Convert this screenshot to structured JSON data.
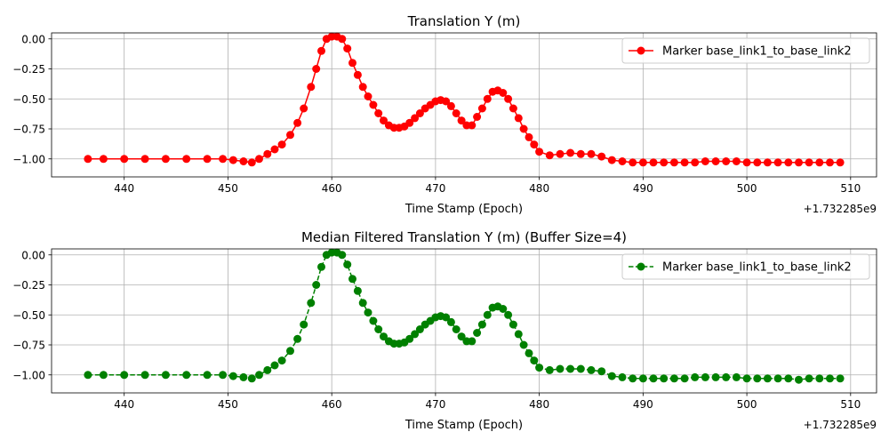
{
  "chart_data": [
    {
      "type": "line",
      "title": "Translation Y (m)",
      "xlabel": "Time Stamp (Epoch)",
      "ylabel": "",
      "x_offset_label": "+1.732285e9",
      "xlim": [
        433.0,
        512.5
      ],
      "ylim": [
        -1.15,
        0.05
      ],
      "xticks": [
        440,
        450,
        460,
        470,
        480,
        490,
        500,
        510
      ],
      "yticks": [
        0.0,
        -0.25,
        -0.5,
        -0.75,
        -1.0
      ],
      "xtick_labels": [
        "440",
        "450",
        "460",
        "470",
        "480",
        "490",
        "500",
        "510"
      ],
      "ytick_labels": [
        "0.00",
        "−0.25",
        "−0.50",
        "−0.75",
        "−1.00"
      ],
      "grid": true,
      "legend_position": "top-right",
      "series": [
        {
          "name": "Marker base_link1_to_base_link2",
          "color": "#ff0000",
          "line_style": "solid",
          "marker": "circle",
          "x": [
            436.5,
            438,
            440,
            442,
            444,
            446,
            448,
            449.5,
            450.5,
            451.5,
            452.3,
            453,
            453.8,
            454.5,
            455.2,
            456,
            456.7,
            457.3,
            458,
            458.5,
            459,
            459.5,
            460,
            460.5,
            461,
            461.5,
            462,
            462.5,
            463,
            463.5,
            464,
            464.5,
            465,
            465.5,
            466,
            466.5,
            467,
            467.5,
            468,
            468.5,
            469,
            469.5,
            470,
            470.5,
            471,
            471.5,
            472,
            472.5,
            473,
            473.5,
            474,
            474.5,
            475,
            475.5,
            476,
            476.5,
            477,
            477.5,
            478,
            478.5,
            479,
            479.5,
            480,
            481,
            482,
            483,
            484,
            485,
            486,
            487,
            488,
            489,
            490,
            491,
            492,
            493,
            494,
            495,
            496,
            497,
            498,
            499,
            500,
            501,
            502,
            503,
            504,
            505,
            506,
            507,
            508,
            509
          ],
          "y": [
            -1.0,
            -1.0,
            -1.0,
            -1.0,
            -1.0,
            -1.0,
            -1.0,
            -1.0,
            -1.01,
            -1.02,
            -1.03,
            -1.0,
            -0.96,
            -0.92,
            -0.88,
            -0.8,
            -0.7,
            -0.58,
            -0.4,
            -0.25,
            -0.1,
            0.0,
            0.02,
            0.02,
            0.0,
            -0.08,
            -0.2,
            -0.3,
            -0.4,
            -0.48,
            -0.55,
            -0.62,
            -0.68,
            -0.72,
            -0.74,
            -0.74,
            -0.73,
            -0.7,
            -0.66,
            -0.62,
            -0.58,
            -0.55,
            -0.52,
            -0.51,
            -0.52,
            -0.56,
            -0.62,
            -0.68,
            -0.72,
            -0.72,
            -0.65,
            -0.58,
            -0.5,
            -0.44,
            -0.43,
            -0.45,
            -0.5,
            -0.58,
            -0.66,
            -0.75,
            -0.82,
            -0.88,
            -0.94,
            -0.97,
            -0.96,
            -0.95,
            -0.96,
            -0.96,
            -0.98,
            -1.01,
            -1.02,
            -1.03,
            -1.03,
            -1.03,
            -1.03,
            -1.03,
            -1.03,
            -1.03,
            -1.02,
            -1.02,
            -1.02,
            -1.02,
            -1.03,
            -1.03,
            -1.03,
            -1.03,
            -1.03,
            -1.03,
            -1.03,
            -1.03,
            -1.03,
            -1.03
          ]
        }
      ]
    },
    {
      "type": "line",
      "title": "Median Filtered Translation Y (m) (Buffer Size=4)",
      "xlabel": "Time Stamp (Epoch)",
      "ylabel": "",
      "x_offset_label": "+1.732285e9",
      "xlim": [
        433.0,
        512.5
      ],
      "ylim": [
        -1.15,
        0.05
      ],
      "xticks": [
        440,
        450,
        460,
        470,
        480,
        490,
        500,
        510
      ],
      "yticks": [
        0.0,
        -0.25,
        -0.5,
        -0.75,
        -1.0
      ],
      "xtick_labels": [
        "440",
        "450",
        "460",
        "470",
        "480",
        "490",
        "500",
        "510"
      ],
      "ytick_labels": [
        "0.00",
        "−0.25",
        "−0.50",
        "−0.75",
        "−1.00"
      ],
      "grid": true,
      "legend_position": "top-right",
      "series": [
        {
          "name": "Marker base_link1_to_base_link2",
          "color": "#008000",
          "line_style": "dashed",
          "marker": "circle",
          "x": [
            436.5,
            438,
            440,
            442,
            444,
            446,
            448,
            449.5,
            450.5,
            451.5,
            452.3,
            453,
            453.8,
            454.5,
            455.2,
            456,
            456.7,
            457.3,
            458,
            458.5,
            459,
            459.5,
            460,
            460.5,
            461,
            461.5,
            462,
            462.5,
            463,
            463.5,
            464,
            464.5,
            465,
            465.5,
            466,
            466.5,
            467,
            467.5,
            468,
            468.5,
            469,
            469.5,
            470,
            470.5,
            471,
            471.5,
            472,
            472.5,
            473,
            473.5,
            474,
            474.5,
            475,
            475.5,
            476,
            476.5,
            477,
            477.5,
            478,
            478.5,
            479,
            479.5,
            480,
            481,
            482,
            483,
            484,
            485,
            486,
            487,
            488,
            489,
            490,
            491,
            492,
            493,
            494,
            495,
            496,
            497,
            498,
            499,
            500,
            501,
            502,
            503,
            504,
            505,
            506,
            507,
            508,
            509
          ],
          "y": [
            -1.0,
            -1.0,
            -1.0,
            -1.0,
            -1.0,
            -1.0,
            -1.0,
            -1.0,
            -1.01,
            -1.02,
            -1.03,
            -1.0,
            -0.96,
            -0.92,
            -0.88,
            -0.8,
            -0.7,
            -0.58,
            -0.4,
            -0.25,
            -0.1,
            0.0,
            0.02,
            0.02,
            0.0,
            -0.08,
            -0.2,
            -0.3,
            -0.4,
            -0.48,
            -0.55,
            -0.62,
            -0.68,
            -0.72,
            -0.74,
            -0.74,
            -0.73,
            -0.7,
            -0.66,
            -0.62,
            -0.58,
            -0.55,
            -0.52,
            -0.51,
            -0.52,
            -0.56,
            -0.62,
            -0.68,
            -0.72,
            -0.72,
            -0.65,
            -0.58,
            -0.5,
            -0.44,
            -0.43,
            -0.45,
            -0.5,
            -0.58,
            -0.66,
            -0.75,
            -0.82,
            -0.88,
            -0.94,
            -0.96,
            -0.95,
            -0.95,
            -0.95,
            -0.96,
            -0.97,
            -1.01,
            -1.02,
            -1.03,
            -1.03,
            -1.03,
            -1.03,
            -1.03,
            -1.03,
            -1.02,
            -1.02,
            -1.02,
            -1.02,
            -1.02,
            -1.03,
            -1.03,
            -1.03,
            -1.03,
            -1.03,
            -1.04,
            -1.03,
            -1.03,
            -1.03,
            -1.03
          ]
        }
      ]
    }
  ]
}
